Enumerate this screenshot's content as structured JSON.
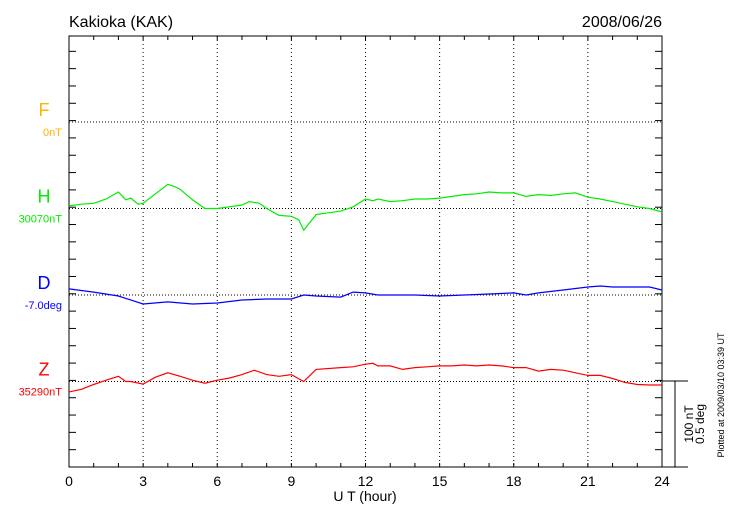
{
  "chart_data": {
    "type": "line",
    "title": "Kakioka (KAK)",
    "date": "2008/06/26",
    "xlabel": "U T (hour)",
    "xlim": [
      0,
      24
    ],
    "xticks": [
      "0",
      "3",
      "6",
      "9",
      "12",
      "15",
      "18",
      "21",
      "24"
    ],
    "grid": "dotted vertical lines every 3 hours, dotted baseline per component",
    "scale_bar": {
      "label_nT": "100 nT",
      "label_deg": "0.5 deg",
      "nT": 100,
      "deg": 0.5
    },
    "footer": "Plotted at 2009/03/10 03:39 UT",
    "series": [
      {
        "name": "F",
        "base_label": "0nT",
        "base": 0,
        "unit": "nT",
        "color": "#ffb400",
        "points": []
      },
      {
        "name": "H",
        "base_label": "30070nT",
        "base": 30070,
        "unit": "nT",
        "color": "#00ee00",
        "points": [
          [
            0,
            30073
          ],
          [
            0.5,
            30075
          ],
          [
            1,
            30076
          ],
          [
            1.5,
            30081
          ],
          [
            2,
            30089
          ],
          [
            2.3,
            30080
          ],
          [
            2.5,
            30082
          ],
          [
            2.8,
            30075
          ],
          [
            3,
            30076
          ],
          [
            3.5,
            30087
          ],
          [
            4,
            30098
          ],
          [
            4.3,
            30095
          ],
          [
            4.5,
            30092
          ],
          [
            5,
            30080
          ],
          [
            5.5,
            30070
          ],
          [
            6,
            30070
          ],
          [
            6.5,
            30072
          ],
          [
            7,
            30074
          ],
          [
            7.3,
            30078
          ],
          [
            7.7,
            30076
          ],
          [
            8,
            30070
          ],
          [
            8.5,
            30062
          ],
          [
            9,
            30061
          ],
          [
            9.3,
            30057
          ],
          [
            9.5,
            30045
          ],
          [
            10,
            30063
          ],
          [
            10.5,
            30065
          ],
          [
            11,
            30067
          ],
          [
            11.5,
            30072
          ],
          [
            12,
            30081
          ],
          [
            12.3,
            30079
          ],
          [
            12.5,
            30081
          ],
          [
            13,
            30078
          ],
          [
            13.5,
            30079
          ],
          [
            14,
            30081
          ],
          [
            14.5,
            30081
          ],
          [
            15,
            30082
          ],
          [
            15.5,
            30084
          ],
          [
            16,
            30086
          ],
          [
            16.5,
            30087
          ],
          [
            17,
            30089
          ],
          [
            17.5,
            30088
          ],
          [
            18,
            30088
          ],
          [
            18.5,
            30084
          ],
          [
            19,
            30086
          ],
          [
            19.5,
            30085
          ],
          [
            20,
            30087
          ],
          [
            20.5,
            30088
          ],
          [
            21,
            30083
          ],
          [
            21.5,
            30081
          ],
          [
            22,
            30078
          ],
          [
            22.5,
            30075
          ],
          [
            23,
            30072
          ],
          [
            23.5,
            30070
          ],
          [
            24,
            30066
          ]
        ]
      },
      {
        "name": "D",
        "base_label": "-7.0deg",
        "base": -7.0,
        "unit": "deg",
        "color": "#0000ff",
        "points": [
          [
            0,
            -6.965
          ],
          [
            1,
            -6.983
          ],
          [
            2,
            -7.006
          ],
          [
            3,
            -7.052
          ],
          [
            4,
            -7.04
          ],
          [
            5,
            -7.052
          ],
          [
            6,
            -7.046
          ],
          [
            7,
            -7.029
          ],
          [
            8,
            -7.023
          ],
          [
            9,
            -7.023
          ],
          [
            9.5,
            -7.0
          ],
          [
            10,
            -7.006
          ],
          [
            11,
            -7.012
          ],
          [
            11.5,
            -6.983
          ],
          [
            12,
            -6.988
          ],
          [
            12.5,
            -7.0
          ],
          [
            13,
            -7.0
          ],
          [
            14,
            -7.0
          ],
          [
            15,
            -7.006
          ],
          [
            16,
            -7.0
          ],
          [
            17,
            -6.994
          ],
          [
            18,
            -6.988
          ],
          [
            18.5,
            -7.0
          ],
          [
            19,
            -6.988
          ],
          [
            20,
            -6.971
          ],
          [
            21,
            -6.954
          ],
          [
            21.5,
            -6.948
          ],
          [
            22,
            -6.954
          ],
          [
            23,
            -6.954
          ],
          [
            23.5,
            -6.954
          ],
          [
            24,
            -6.971
          ]
        ]
      },
      {
        "name": "Z",
        "base_label": "35290nT",
        "base": 35290,
        "unit": "nT",
        "color": "#ff0000",
        "points": [
          [
            0,
            35278
          ],
          [
            0.5,
            35281
          ],
          [
            1,
            35286.5
          ],
          [
            1.5,
            35291.5
          ],
          [
            2,
            35296
          ],
          [
            2.3,
            35290
          ],
          [
            2.5,
            35290
          ],
          [
            3,
            35287
          ],
          [
            3.5,
            35295
          ],
          [
            4,
            35300
          ],
          [
            4.5,
            35296
          ],
          [
            5,
            35291.5
          ],
          [
            5.5,
            35288
          ],
          [
            6,
            35291.5
          ],
          [
            6.5,
            35294
          ],
          [
            7,
            35298
          ],
          [
            7.5,
            35303
          ],
          [
            8,
            35298
          ],
          [
            8.5,
            35296
          ],
          [
            9,
            35298
          ],
          [
            9.5,
            35290
          ],
          [
            10,
            35304
          ],
          [
            11,
            35306
          ],
          [
            11.5,
            35307
          ],
          [
            12,
            35310
          ],
          [
            12.3,
            35311
          ],
          [
            12.5,
            35308
          ],
          [
            13,
            35308
          ],
          [
            13.5,
            35304
          ],
          [
            14,
            35306
          ],
          [
            14.5,
            35307
          ],
          [
            15,
            35308
          ],
          [
            15.5,
            35308
          ],
          [
            16,
            35309
          ],
          [
            16.5,
            35308
          ],
          [
            17,
            35309
          ],
          [
            17.5,
            35308
          ],
          [
            18,
            35306
          ],
          [
            18.5,
            35306
          ],
          [
            19,
            35302
          ],
          [
            19.5,
            35304
          ],
          [
            20,
            35303
          ],
          [
            20.5,
            35300
          ],
          [
            21,
            35297
          ],
          [
            21.5,
            35297
          ],
          [
            22,
            35293.5
          ],
          [
            22.5,
            35289
          ],
          [
            23,
            35286.5
          ],
          [
            23.5,
            35286
          ],
          [
            24,
            35286
          ]
        ]
      }
    ]
  }
}
